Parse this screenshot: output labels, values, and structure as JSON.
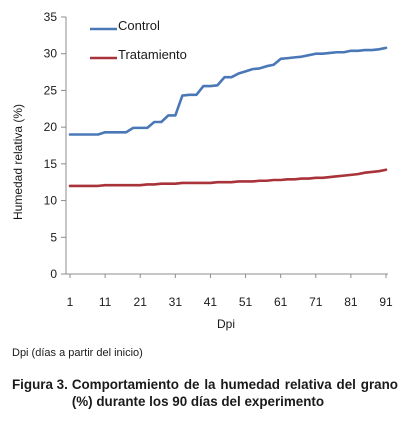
{
  "chart_data": {
    "type": "line",
    "x": [
      1,
      3,
      5,
      7,
      9,
      11,
      13,
      15,
      17,
      19,
      21,
      23,
      25,
      27,
      29,
      31,
      33,
      35,
      37,
      39,
      41,
      43,
      45,
      47,
      49,
      51,
      53,
      55,
      57,
      59,
      61,
      63,
      65,
      67,
      69,
      71,
      73,
      75,
      77,
      79,
      81,
      83,
      85,
      87,
      89,
      91
    ],
    "x_ticks": [
      "1",
      "11",
      "21",
      "31",
      "41",
      "51",
      "61",
      "71",
      "81",
      "91"
    ],
    "y_ticks": [
      "0",
      "5",
      "10",
      "15",
      "20",
      "25",
      "30",
      "35"
    ],
    "ylim": [
      0,
      35
    ],
    "xlim": [
      1,
      91
    ],
    "xlabel": "Dpi",
    "ylabel": "Humedad relativa (%)",
    "legend_position": "top-left",
    "grid": false,
    "series": [
      {
        "name": "Control",
        "color": "#4a78b7",
        "values": [
          19.0,
          19.0,
          19.0,
          19.0,
          19.0,
          19.3,
          19.3,
          19.3,
          19.3,
          19.9,
          19.9,
          19.9,
          20.7,
          20.7,
          21.6,
          21.6,
          24.3,
          24.4,
          24.4,
          25.6,
          25.6,
          25.7,
          26.8,
          26.8,
          27.3,
          27.6,
          27.9,
          28.0,
          28.3,
          28.5,
          29.3,
          29.4,
          29.5,
          29.6,
          29.8,
          30.0,
          30.0,
          30.1,
          30.2,
          30.2,
          30.4,
          30.4,
          30.5,
          30.5,
          30.6,
          30.8
        ]
      },
      {
        "name": "Tratamiento",
        "color": "#a8333a",
        "values": [
          12.0,
          12.0,
          12.0,
          12.0,
          12.0,
          12.1,
          12.1,
          12.1,
          12.1,
          12.1,
          12.1,
          12.2,
          12.2,
          12.3,
          12.3,
          12.3,
          12.4,
          12.4,
          12.4,
          12.4,
          12.4,
          12.5,
          12.5,
          12.5,
          12.6,
          12.6,
          12.6,
          12.7,
          12.7,
          12.8,
          12.8,
          12.9,
          12.9,
          13.0,
          13.0,
          13.1,
          13.1,
          13.2,
          13.3,
          13.4,
          13.5,
          13.6,
          13.8,
          13.9,
          14.0,
          14.2
        ]
      }
    ]
  },
  "note": "Dpi (días a partir del inicio)",
  "caption": {
    "label": "Figura 3.",
    "text": "Comportamiento de la humedad relativa del grano (%) durante los 90 días del experimento"
  }
}
